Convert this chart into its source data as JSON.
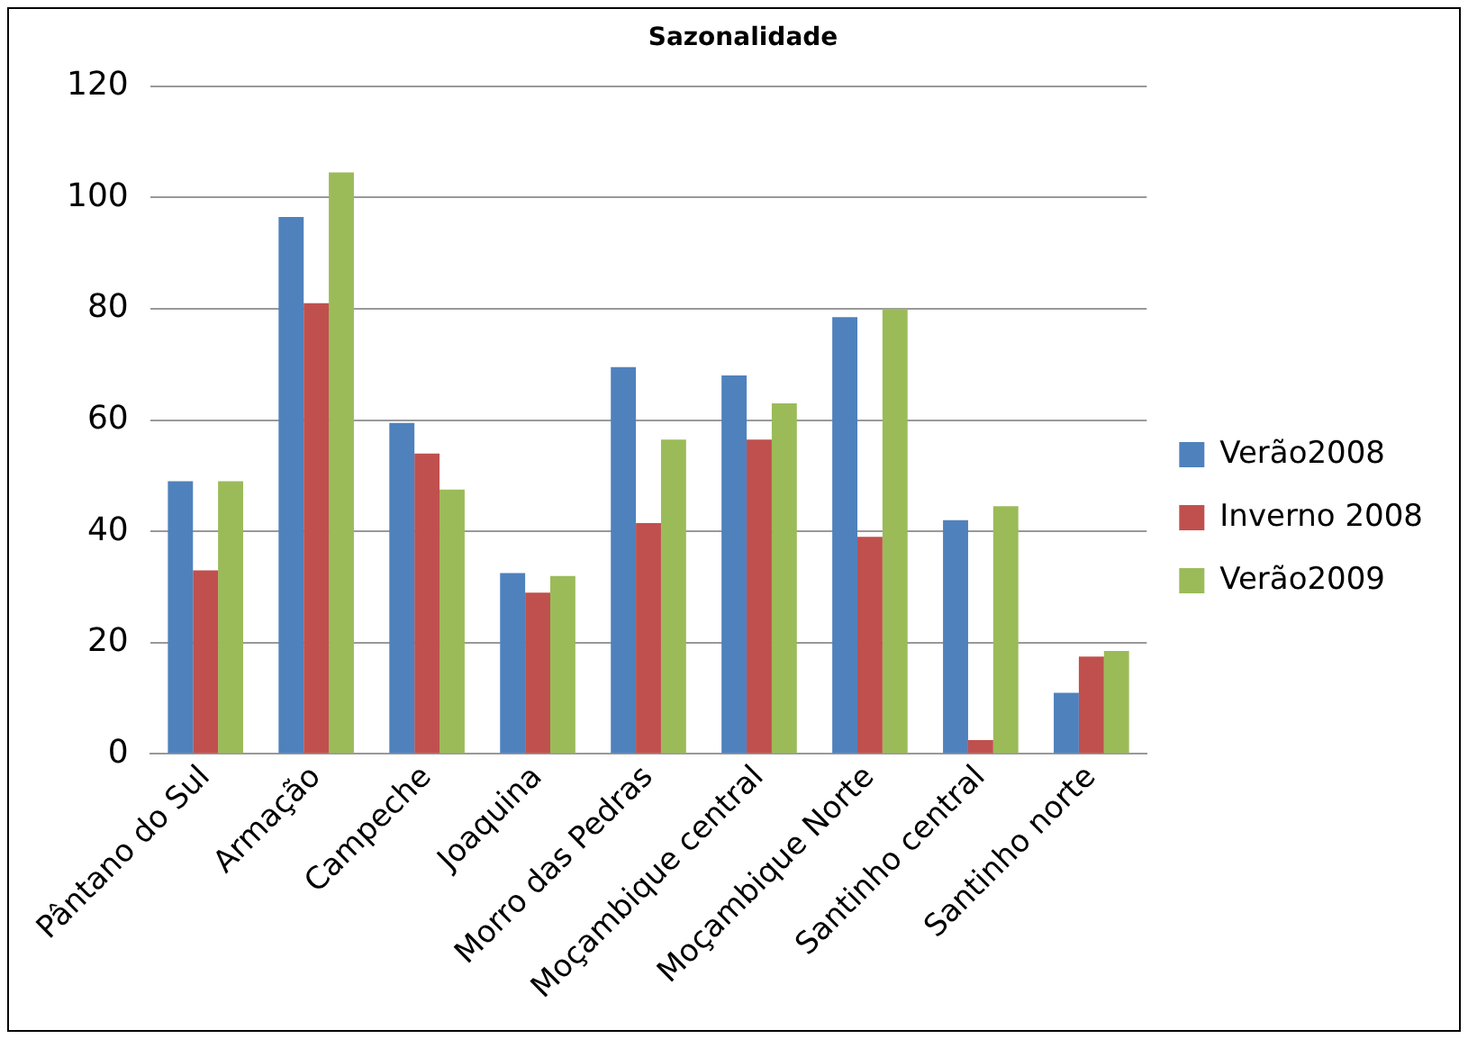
{
  "chart_data": {
    "type": "bar",
    "title": "Sazonalidade",
    "categories": [
      "Pântano do Sul",
      "Armação",
      "Campeche",
      "Joaquina",
      "Morro das Pedras",
      "Moçambique central",
      "Moçambique Norte",
      "Santinho central",
      "Santinho norte"
    ],
    "series": [
      {
        "name": "Verão2008",
        "color": "#4f81bd",
        "values": [
          49,
          96.5,
          59.5,
          32.5,
          69.5,
          68,
          78.5,
          42,
          11
        ]
      },
      {
        "name": "Inverno 2008",
        "color": "#c0504d",
        "values": [
          33,
          81,
          54,
          29,
          41.5,
          56.5,
          39,
          2.5,
          17.5
        ]
      },
      {
        "name": "Verão2009",
        "color": "#9bbb59",
        "values": [
          49,
          104.5,
          47.5,
          32,
          56.5,
          63,
          80,
          44.5,
          18.5
        ]
      }
    ],
    "ylim": [
      0,
      120
    ],
    "yticks": [
      0,
      20,
      40,
      60,
      80,
      100,
      120
    ],
    "grid": "y",
    "legend": "right"
  }
}
